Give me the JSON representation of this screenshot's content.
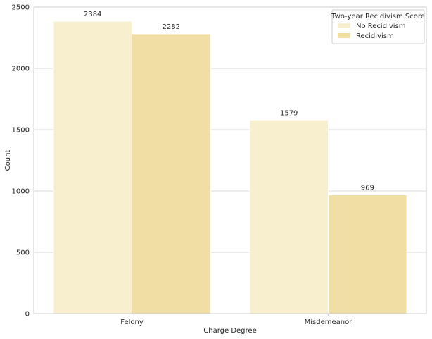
{
  "chart_data": {
    "type": "bar",
    "title": "",
    "xlabel": "Charge Degree",
    "ylabel": "Count",
    "categories": [
      "Felony",
      "Misdemeanor"
    ],
    "series": [
      {
        "name": "No Recidivism",
        "values": [
          2384,
          1579
        ],
        "color": "#f8efcf"
      },
      {
        "name": "Recidivism",
        "values": [
          2282,
          969
        ],
        "color": "#f1dea5"
      }
    ],
    "ylim": [
      0,
      2500
    ],
    "yticks": [
      0,
      500,
      1000,
      1500,
      2000,
      2500
    ],
    "ytick_labels": [
      "0",
      "500",
      "1000",
      "1500",
      "2000",
      "2500"
    ],
    "grid": "horizontal",
    "legend": {
      "title": "Two-year Recidivism Score",
      "position": "top-right"
    },
    "data_labels": [
      "2384",
      "2282",
      "1579",
      "969"
    ]
  }
}
